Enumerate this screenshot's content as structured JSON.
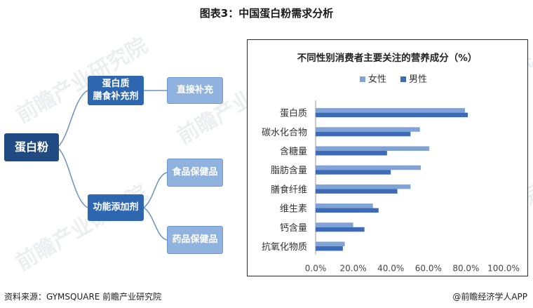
{
  "figure_title": "图表3：中国蛋白粉需求分析",
  "mindmap": {
    "root": "蛋白粉",
    "branch_supplement": "蛋白质\n膳食补充剂",
    "branch_additive": "功能添加剂",
    "leaf_direct": "直接补充",
    "leaf_food": "食品保健品",
    "leaf_drug": "药品保健品"
  },
  "watermark": "前瞻产业研究院",
  "chart_data": {
    "type": "bar",
    "orientation": "horizontal",
    "title": "不同性别消费者主要关注的营养成分（%）",
    "categories": [
      "蛋白质",
      "碳水化合物",
      "含糖量",
      "脂肪含量",
      "膳食纤维",
      "维生素",
      "钙含量",
      "抗氧化物质"
    ],
    "series": [
      {
        "name": "女性",
        "color": "#7fa3d6",
        "values": [
          79.5,
          55.5,
          60.5,
          56,
          50.5,
          30.5,
          20,
          15.5
        ]
      },
      {
        "name": "男性",
        "color": "#3d6bb8",
        "values": [
          81,
          50.5,
          38,
          40,
          43.5,
          33.5,
          26,
          14.5
        ]
      }
    ],
    "x_ticks": [
      "0.0%",
      "20.0%",
      "40.0%",
      "60.0%",
      "80.0%",
      "100.0%"
    ],
    "xlim": [
      0,
      100
    ],
    "legend_position": "top",
    "grid": false
  },
  "footer": {
    "source": "资料来源：GYMSQUARE 前瞻产业研究院",
    "brand": "@前瞻经济学人APP"
  }
}
